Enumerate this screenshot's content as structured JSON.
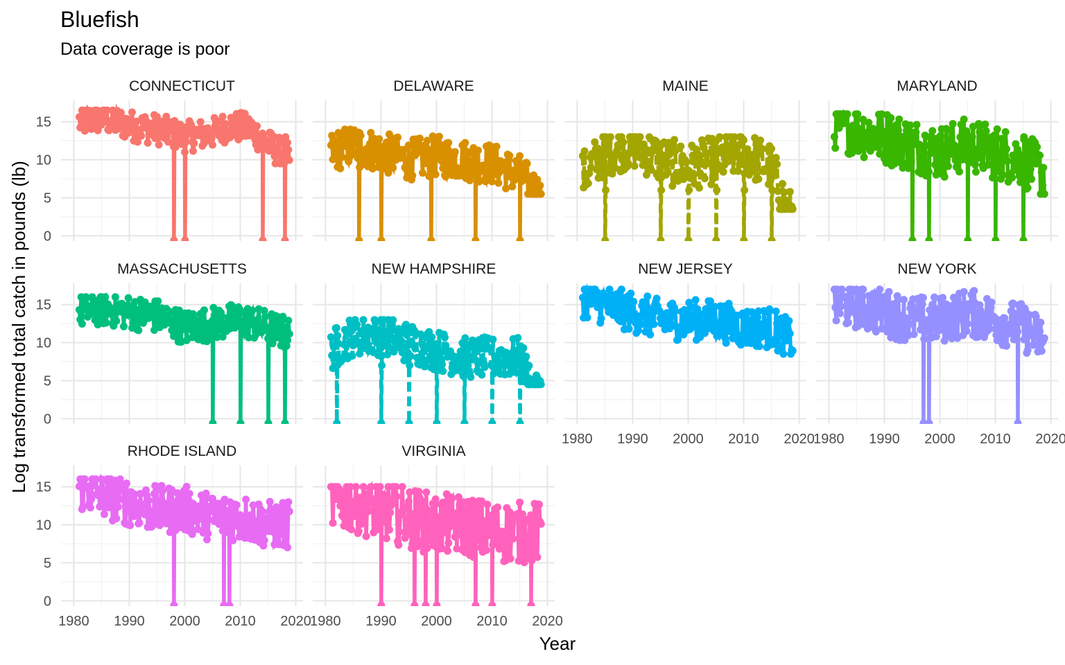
{
  "chart_data": {
    "type": "line",
    "title": "Bluefish",
    "subtitle": "Data coverage is poor",
    "xlabel": "Year",
    "ylabel": "Log transformed  total catch in pounds (lb)",
    "xlim": [
      1980,
      2020
    ],
    "ylim": [
      0,
      17
    ],
    "x_ticks": [
      1980,
      1990,
      2000,
      2010,
      2020
    ],
    "y_ticks": [
      0,
      5,
      10,
      15
    ],
    "grid": true,
    "legend": "none",
    "facet_layout": "4 columns, 3 rows",
    "series": [
      {
        "name": "CONNECTICUT",
        "color": "#F8766D",
        "dense_range": [
          11,
          15.5
        ],
        "low_years": [
          1998,
          2000,
          2014,
          2018
        ],
        "x": [
          1981,
          1985,
          1990,
          1995,
          2000,
          2005,
          2008,
          2012,
          2015,
          2019
        ],
        "values": [
          15,
          15.5,
          14.5,
          14,
          13,
          13.5,
          14.5,
          14,
          12,
          10
        ]
      },
      {
        "name": "DELAWARE",
        "color": "#D89000",
        "dense_range": [
          7,
          13
        ],
        "low_years": [
          1986,
          1990,
          1999,
          2007,
          2015
        ],
        "x": [
          1981,
          1985,
          1990,
          1995,
          2000,
          2005,
          2010,
          2015,
          2019
        ],
        "values": [
          11,
          12,
          11,
          10,
          10.5,
          10,
          9.5,
          8,
          5
        ]
      },
      {
        "name": "MAINE",
        "color": "#A3A500",
        "dense_range": [
          5,
          12
        ],
        "low_years": [
          1985,
          1995,
          2000,
          2005,
          2010,
          2015
        ],
        "x": [
          1981,
          1985,
          1990,
          1995,
          2000,
          2005,
          2010,
          2015,
          2018
        ],
        "values": [
          8,
          11,
          12,
          10,
          9,
          10,
          11,
          9,
          3
        ]
      },
      {
        "name": "MARYLAND",
        "color": "#39B600",
        "dense_range": [
          7,
          15
        ],
        "low_years": [
          1995,
          1998,
          2005,
          2010,
          2015
        ],
        "x": [
          1981,
          1985,
          1990,
          1995,
          2000,
          2005,
          2010,
          2015,
          2019
        ],
        "values": [
          15,
          14,
          13,
          12,
          11,
          12,
          11,
          10,
          8
        ]
      },
      {
        "name": "MASSACHUSETTS",
        "color": "#00BF7D",
        "dense_range": [
          10,
          15
        ],
        "low_years": [
          2005,
          2010,
          2015,
          2018
        ],
        "x": [
          1981,
          1985,
          1990,
          1995,
          2000,
          2005,
          2010,
          2015,
          2019
        ],
        "values": [
          14,
          14.5,
          14,
          13.5,
          12,
          12.5,
          13,
          12,
          11
        ]
      },
      {
        "name": "NEW HAMPSHIRE",
        "color": "#00BFC4",
        "dense_range": [
          6,
          12
        ],
        "low_years": [
          1982,
          1990,
          1995,
          2000,
          2005,
          2010,
          2015
        ],
        "x": [
          1981,
          1985,
          1990,
          1995,
          2000,
          2005,
          2010,
          2015,
          2018
        ],
        "values": [
          9,
          11,
          11,
          10,
          9,
          8,
          8,
          8,
          3
        ]
      },
      {
        "name": "NEW JERSEY",
        "color": "#00B0F6",
        "dense_range": [
          10,
          16
        ],
        "low_years": [],
        "x": [
          1981,
          1985,
          1990,
          1995,
          2000,
          2005,
          2010,
          2015,
          2019
        ],
        "values": [
          16,
          15,
          14,
          13,
          13,
          13,
          12,
          12,
          10
        ]
      },
      {
        "name": "NEW YORK",
        "color": "#9590FF",
        "dense_range": [
          9,
          16
        ],
        "low_years": [
          1997,
          1998,
          2014
        ],
        "x": [
          1981,
          1985,
          1990,
          1995,
          2000,
          2005,
          2010,
          2015,
          2019
        ],
        "values": [
          15,
          15,
          14,
          13,
          13,
          14,
          13,
          12,
          10
        ]
      },
      {
        "name": "RHODE ISLAND",
        "color": "#E76BF3",
        "dense_range": [
          8,
          15
        ],
        "low_years": [
          1998,
          2007,
          2008
        ],
        "x": [
          1981,
          1985,
          1990,
          1995,
          2000,
          2005,
          2010,
          2015,
          2019
        ],
        "values": [
          15,
          14,
          13,
          12,
          12,
          11,
          11,
          10,
          10
        ]
      },
      {
        "name": "VIRGINIA",
        "color": "#FF62BC",
        "dense_range": [
          5,
          14
        ],
        "low_years": [
          1990,
          1996,
          1998,
          2000,
          2007,
          2010,
          2017
        ],
        "x": [
          1981,
          1985,
          1990,
          1995,
          2000,
          2005,
          2010,
          2015,
          2019
        ],
        "values": [
          13,
          13,
          12,
          11,
          10,
          10,
          9,
          9,
          9
        ]
      }
    ]
  }
}
